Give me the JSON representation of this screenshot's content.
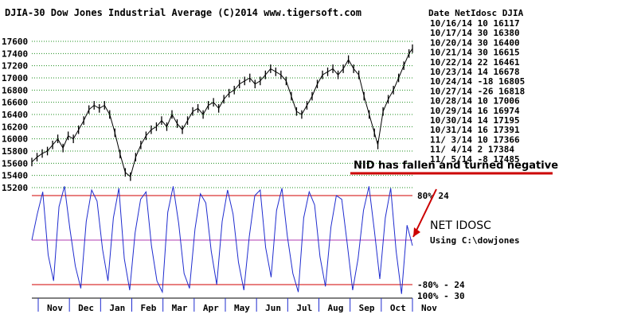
{
  "chart_data": {
    "type": "line",
    "title": "DJIA-30  Dow Jones Industrial Average  (C)2014 www.tigersoft.com",
    "price_ticks": [
      "17600",
      "17400",
      "17200",
      "17000",
      "16800",
      "16600",
      "16400",
      "16200",
      "16000",
      "15800",
      "15600",
      "15400",
      "15200"
    ],
    "price_tick_values": [
      17600,
      17400,
      17200,
      17000,
      16800,
      16600,
      16400,
      16200,
      16000,
      15800,
      15600,
      15400,
      15200
    ],
    "price_ylim": [
      15200,
      17600
    ],
    "months": [
      "Nov",
      "Dec",
      "Jan",
      "Feb",
      "Mar",
      "Apr",
      "May",
      "Jun",
      "Jul",
      "Aug",
      "Sep",
      "Oct",
      "Nov"
    ],
    "price_series": [
      {
        "x": 0,
        "y": 15620
      },
      {
        "x": 3,
        "y": 15700
      },
      {
        "x": 6,
        "y": 15760
      },
      {
        "x": 9,
        "y": 15800
      },
      {
        "x": 12,
        "y": 15900
      },
      {
        "x": 15,
        "y": 16000
      },
      {
        "x": 18,
        "y": 15850
      },
      {
        "x": 21,
        "y": 16050
      },
      {
        "x": 24,
        "y": 16000
      },
      {
        "x": 27,
        "y": 16150
      },
      {
        "x": 30,
        "y": 16300
      },
      {
        "x": 33,
        "y": 16480
      },
      {
        "x": 36,
        "y": 16550
      },
      {
        "x": 39,
        "y": 16500
      },
      {
        "x": 42,
        "y": 16550
      },
      {
        "x": 45,
        "y": 16400
      },
      {
        "x": 48,
        "y": 16100
      },
      {
        "x": 51,
        "y": 15750
      },
      {
        "x": 54,
        "y": 15450
      },
      {
        "x": 57,
        "y": 15380
      },
      {
        "x": 60,
        "y": 15700
      },
      {
        "x": 63,
        "y": 15900
      },
      {
        "x": 66,
        "y": 16050
      },
      {
        "x": 69,
        "y": 16150
      },
      {
        "x": 72,
        "y": 16200
      },
      {
        "x": 75,
        "y": 16300
      },
      {
        "x": 78,
        "y": 16200
      },
      {
        "x": 81,
        "y": 16400
      },
      {
        "x": 84,
        "y": 16250
      },
      {
        "x": 87,
        "y": 16150
      },
      {
        "x": 90,
        "y": 16300
      },
      {
        "x": 93,
        "y": 16450
      },
      {
        "x": 96,
        "y": 16500
      },
      {
        "x": 99,
        "y": 16400
      },
      {
        "x": 102,
        "y": 16550
      },
      {
        "x": 105,
        "y": 16600
      },
      {
        "x": 108,
        "y": 16500
      },
      {
        "x": 111,
        "y": 16650
      },
      {
        "x": 114,
        "y": 16750
      },
      {
        "x": 117,
        "y": 16800
      },
      {
        "x": 120,
        "y": 16900
      },
      {
        "x": 123,
        "y": 16950
      },
      {
        "x": 126,
        "y": 17000
      },
      {
        "x": 129,
        "y": 16900
      },
      {
        "x": 132,
        "y": 16950
      },
      {
        "x": 135,
        "y": 17050
      },
      {
        "x": 138,
        "y": 17150
      },
      {
        "x": 141,
        "y": 17100
      },
      {
        "x": 144,
        "y": 17050
      },
      {
        "x": 147,
        "y": 16950
      },
      {
        "x": 150,
        "y": 16700
      },
      {
        "x": 153,
        "y": 16450
      },
      {
        "x": 156,
        "y": 16400
      },
      {
        "x": 159,
        "y": 16550
      },
      {
        "x": 162,
        "y": 16700
      },
      {
        "x": 165,
        "y": 16900
      },
      {
        "x": 168,
        "y": 17050
      },
      {
        "x": 171,
        "y": 17100
      },
      {
        "x": 174,
        "y": 17150
      },
      {
        "x": 177,
        "y": 17050
      },
      {
        "x": 180,
        "y": 17150
      },
      {
        "x": 183,
        "y": 17300
      },
      {
        "x": 186,
        "y": 17150
      },
      {
        "x": 189,
        "y": 17050
      },
      {
        "x": 192,
        "y": 16700
      },
      {
        "x": 195,
        "y": 16400
      },
      {
        "x": 198,
        "y": 16100
      },
      {
        "x": 200,
        "y": 15900
      },
      {
        "x": 203,
        "y": 16450
      },
      {
        "x": 206,
        "y": 16650
      },
      {
        "x": 209,
        "y": 16800
      },
      {
        "x": 212,
        "y": 17000
      },
      {
        "x": 215,
        "y": 17200
      },
      {
        "x": 218,
        "y": 17400
      },
      {
        "x": 220,
        "y": 17480
      }
    ],
    "osc_levels": [
      {
        "label": "80%  24",
        "value": 24
      },
      {
        "label": "-80% - 24",
        "value": -24
      },
      {
        "label": "100%  - 30",
        "value": -30
      }
    ],
    "osc_ylim": [
      -30,
      30
    ],
    "osc_series": [
      0,
      14,
      26,
      -8,
      -22,
      18,
      29,
      6,
      -14,
      -26,
      10,
      27,
      21,
      -5,
      -22,
      12,
      28,
      -10,
      -27,
      4,
      22,
      26,
      -3,
      -22,
      -28,
      15,
      29,
      9,
      -18,
      -26,
      6,
      25,
      20,
      -6,
      -24,
      10,
      27,
      14,
      -12,
      -27,
      2,
      24,
      27,
      -4,
      -20,
      16,
      28,
      2,
      -18,
      -28,
      12,
      26,
      19,
      -9,
      -25,
      7,
      24,
      22,
      -2,
      -27,
      -10,
      16,
      29,
      5,
      -21,
      12,
      28,
      -6,
      -29,
      8,
      -3
    ],
    "series_names": [
      "NET IDOSC"
    ]
  },
  "table": {
    "header": "Date  NetIdosc  DJIA",
    "rows": [
      "10/16/14   10  16117",
      "10/17/14   30  16380",
      "10/20/14   30  16400",
      "10/21/14   30  16615",
      "10/22/14   22  16461",
      "10/23/14   14  16678",
      "10/24/14  -18  16805",
      "10/27/14  -26  16818",
      "10/28/14   10  17006",
      "10/29/14   16  16974",
      "10/30/14   14  17195",
      "10/31/14   16  17391",
      "11/ 3/14  10  17366",
      "11/ 4/14  2  17384",
      "11/ 5/14 -8  17485"
    ]
  },
  "annotation": "NID has fallen and turned negative",
  "osc_label": "NET IDOSC",
  "osc_source": "Using C:\\dowjones",
  "colors": {
    "price_line": "#000000",
    "osc_line": "#1f2ccf",
    "gridline": "#1e8f1e",
    "level_lines": "#d10000",
    "zero_line": "#b23bb2",
    "annotation_underline": "#cc0000"
  }
}
